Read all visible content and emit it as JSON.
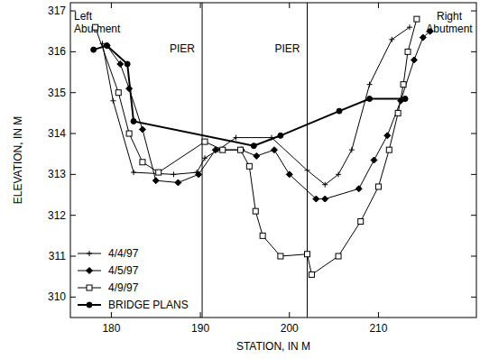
{
  "chart_data": {
    "type": "line",
    "x_label": "STATION, IN M",
    "y_label": "ELEVATION, IN M",
    "annotations": [
      "Left Abutment",
      "Right Abutment"
    ],
    "piers": [
      {
        "label": "PIER",
        "x": 190.2
      },
      {
        "label": "PIER",
        "x": 202
      }
    ],
    "xlim": [
      175.4,
      221
    ],
    "ylim": [
      309.5,
      317.2
    ],
    "xticks": [
      180,
      190,
      200,
      210
    ],
    "yticks": [
      310,
      311,
      312,
      313,
      314,
      315,
      316,
      317
    ],
    "legend": "lower left",
    "grid": false,
    "series": [
      {
        "name": "4/4/97",
        "color": "#000000",
        "marker": "plus",
        "line_style": "solid",
        "x": [
          179.0,
          180.2,
          182.5,
          187.0,
          189.6,
          190.5,
          192.0,
          194.0,
          198.0,
          202.0,
          204.0,
          205.5,
          207.0,
          209.0,
          211.5,
          213.5
        ],
        "values": [
          316.2,
          314.8,
          313.05,
          313.0,
          313.05,
          313.4,
          313.6,
          313.9,
          313.9,
          313.1,
          312.75,
          313.0,
          313.6,
          315.2,
          316.3,
          316.6
        ]
      },
      {
        "name": "4/5/97",
        "color": "#000000",
        "marker": "diamond",
        "line_style": "solid",
        "x": [
          179.5,
          181.0,
          182.0,
          183.5,
          185.0,
          187.5,
          189.8,
          191.7,
          194.6,
          196.3,
          198.3,
          200.0,
          203.0,
          204.0,
          207.8,
          209.5,
          211.0,
          212.5,
          214.0,
          215.0,
          215.8
        ],
        "values": [
          316.15,
          315.7,
          315.1,
          314.1,
          312.85,
          312.8,
          313.0,
          313.6,
          313.6,
          313.45,
          313.6,
          313.0,
          312.4,
          312.4,
          312.65,
          313.35,
          313.95,
          314.8,
          315.8,
          316.35,
          316.5
        ]
      },
      {
        "name": "4/9/97",
        "color": "#000000",
        "marker": "square",
        "line_style": "solid",
        "x": [
          178.2,
          180.8,
          182.0,
          183.5,
          185.3,
          190.5,
          192.5,
          194.5,
          195.5,
          196.2,
          197.0,
          199.0,
          202.0,
          202.5,
          205.5,
          208.0,
          210.0,
          211.2,
          212.2,
          212.8,
          213.3,
          214.3
        ],
        "values": [
          316.6,
          315.0,
          314.0,
          313.3,
          313.05,
          313.8,
          313.6,
          313.6,
          313.2,
          312.1,
          311.5,
          311.0,
          311.05,
          310.55,
          311.0,
          311.85,
          312.7,
          313.6,
          314.5,
          315.2,
          316.0,
          316.8
        ]
      },
      {
        "name": "BRIDGE PLANS",
        "color": "#000000",
        "marker": "circle",
        "line_style": "bold",
        "x": [
          178.0,
          179.5,
          181.8,
          182.5,
          196.0,
          199.0,
          205.6,
          209.0,
          213.0
        ],
        "values": [
          316.05,
          316.15,
          315.7,
          314.3,
          313.7,
          313.95,
          314.55,
          314.85,
          314.85
        ]
      }
    ]
  }
}
